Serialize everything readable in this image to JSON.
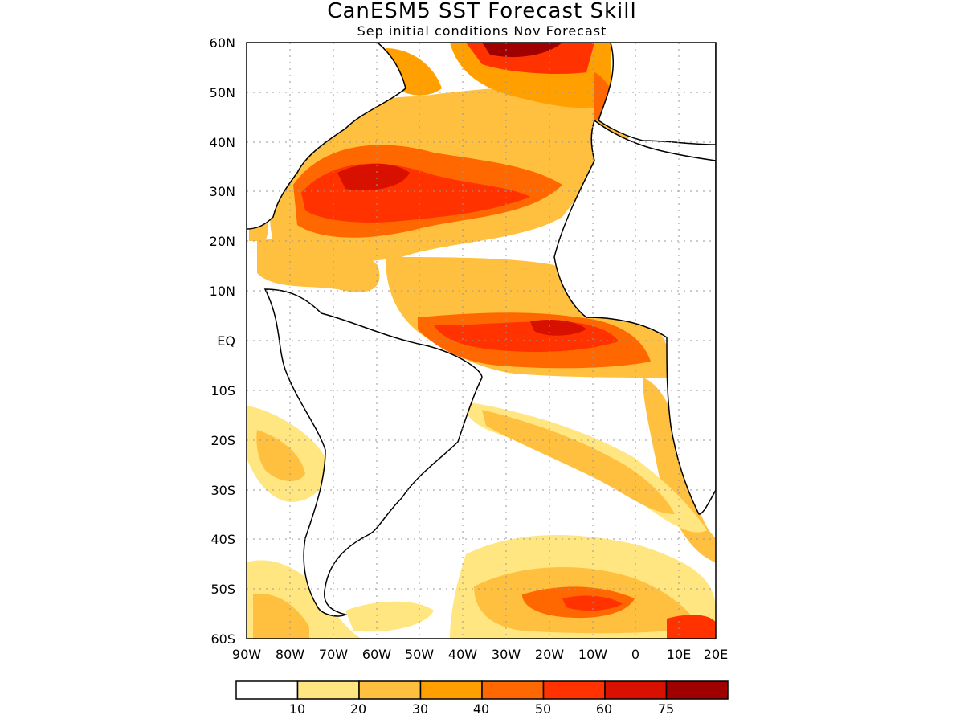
{
  "title": "CanESM5 SST Forecast Skill",
  "subtitle": "Sep initial conditions  Nov Forecast",
  "map": {
    "lat_labels": [
      "60N",
      "50N",
      "40N",
      "30N",
      "20N",
      "10N",
      "EQ",
      "10S",
      "20S",
      "30S",
      "40S",
      "50S",
      "60S"
    ],
    "lon_labels": [
      "90W",
      "80W",
      "70W",
      "60W",
      "50W",
      "40W",
      "30W",
      "20W",
      "10W",
      "0",
      "10E",
      "20E"
    ],
    "lon_range": [
      -90,
      20
    ],
    "lat_range": [
      -60,
      60
    ],
    "grid": "dotted"
  },
  "colorbar": {
    "colors": [
      "#ffffff",
      "#ffe680",
      "#ffc040",
      "#ffa000",
      "#ff6800",
      "#ff3200",
      "#d81000",
      "#a00000"
    ],
    "labels": [
      "10",
      "20",
      "30",
      "40",
      "50",
      "60",
      "75"
    ]
  }
}
